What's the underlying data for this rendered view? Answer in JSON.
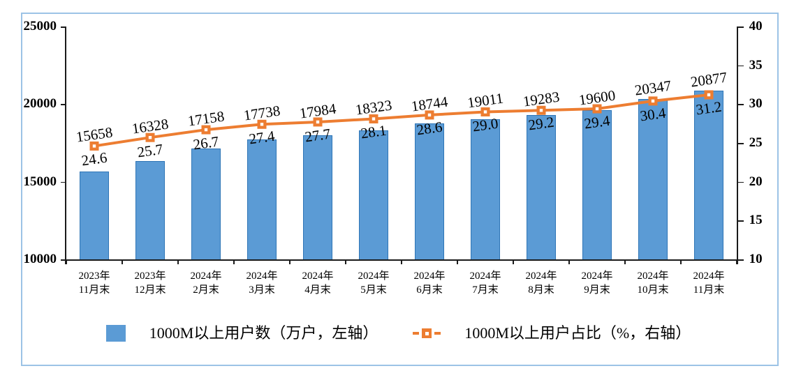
{
  "chart_data": {
    "type": "combo-bar-line",
    "categories": [
      [
        "2023年",
        "11月末"
      ],
      [
        "2023年",
        "12月末"
      ],
      [
        "2024年",
        "2月末"
      ],
      [
        "2024年",
        "3月末"
      ],
      [
        "2024年",
        "4月末"
      ],
      [
        "2024年",
        "5月末"
      ],
      [
        "2024年",
        "6月末"
      ],
      [
        "2024年",
        "7月末"
      ],
      [
        "2024年",
        "8月末"
      ],
      [
        "2024年",
        "9月末"
      ],
      [
        "2024年",
        "10月末"
      ],
      [
        "2024年",
        "11月末"
      ]
    ],
    "series": [
      {
        "name": "1000M以上用户数（万户，左轴）",
        "type": "bar",
        "axis": "left",
        "values": [
          15658,
          16328,
          17158,
          17738,
          17984,
          18323,
          18744,
          19011,
          19283,
          19600,
          20347,
          20877
        ],
        "fill": "#5B9BD5",
        "stroke": "#2E75B6"
      },
      {
        "name": "1000M以上用户占比（%，右轴）",
        "type": "line",
        "axis": "right",
        "values": [
          24.6,
          25.7,
          26.7,
          27.4,
          27.7,
          28.1,
          28.6,
          29.0,
          29.2,
          29.4,
          30.4,
          31.2
        ],
        "color": "#ED7D31",
        "label_decimals": 1
      }
    ],
    "left_axis": {
      "min": 10000,
      "max": 25000,
      "ticks": [
        25000,
        20000,
        15000,
        10000
      ]
    },
    "right_axis": {
      "min": 10,
      "max": 40,
      "ticks": [
        40,
        35,
        30,
        25,
        20,
        15,
        10
      ]
    },
    "grid": false,
    "legend_position": "bottom",
    "frame_color": "#9CC3E6",
    "axis_color": "#1a1a1a"
  },
  "legend": {
    "bar_label": "1000M以上用户数（万户，左轴）",
    "line_label": "1000M以上用户占比（%，右轴）"
  }
}
